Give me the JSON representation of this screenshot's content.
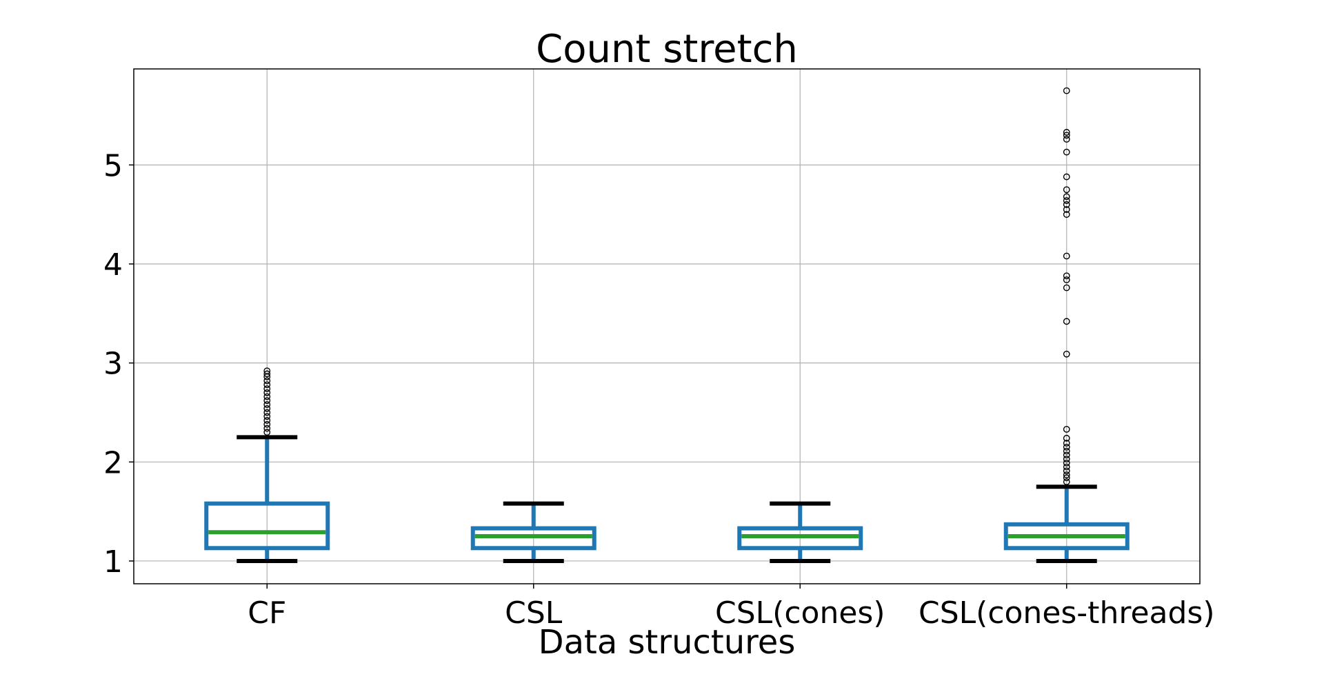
{
  "chart_data": {
    "type": "box",
    "title": "Count stretch",
    "xlabel": "Data structures",
    "ylabel": "",
    "ylim": [
      0.77,
      5.97
    ],
    "yticks": [
      1,
      2,
      3,
      4,
      5
    ],
    "grid": true,
    "colors": {
      "box": "#1f77b4",
      "median": "#2ca02c",
      "whisker_cap": "#000000",
      "flier": "#000000",
      "grid": "#b0b0b0"
    },
    "categories": [
      "CF",
      "CSL",
      "CSL(cones)",
      "CSL(cones-threads)"
    ],
    "boxes": [
      {
        "label": "CF",
        "whisker_low": 1.0,
        "q1": 1.13,
        "median": 1.29,
        "q3": 1.58,
        "whisker_high": 2.25,
        "outliers": [
          2.3,
          2.34,
          2.38,
          2.42,
          2.46,
          2.5,
          2.54,
          2.58,
          2.62,
          2.66,
          2.7,
          2.74,
          2.78,
          2.82,
          2.86,
          2.89,
          2.92
        ]
      },
      {
        "label": "CSL",
        "whisker_low": 1.0,
        "q1": 1.13,
        "median": 1.25,
        "q3": 1.33,
        "whisker_high": 1.58,
        "outliers": []
      },
      {
        "label": "CSL(cones)",
        "whisker_low": 1.0,
        "q1": 1.13,
        "median": 1.25,
        "q3": 1.33,
        "whisker_high": 1.58,
        "outliers": []
      },
      {
        "label": "CSL(cones-threads)",
        "whisker_low": 1.0,
        "q1": 1.13,
        "median": 1.25,
        "q3": 1.37,
        "whisker_high": 1.75,
        "outliers": [
          1.8,
          1.84,
          1.87,
          1.91,
          1.95,
          1.99,
          2.03,
          2.07,
          2.11,
          2.15,
          2.19,
          2.24,
          2.33,
          3.09,
          3.42,
          3.76,
          3.84,
          3.88,
          4.08,
          4.5,
          4.55,
          4.6,
          4.64,
          4.68,
          4.75,
          4.88,
          5.13,
          5.26,
          5.3,
          5.33,
          5.75
        ]
      }
    ]
  }
}
